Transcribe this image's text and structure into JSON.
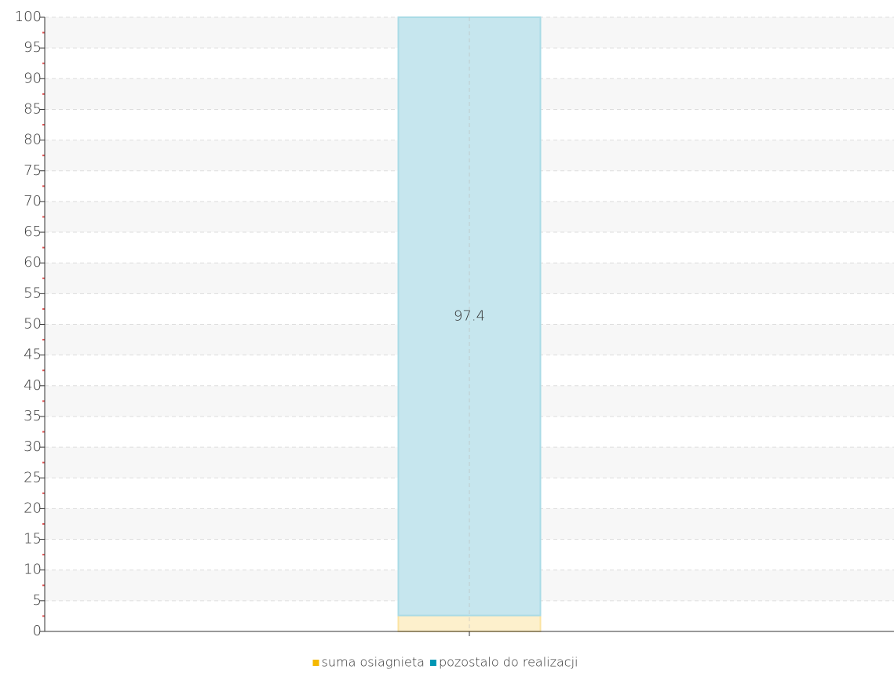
{
  "chart_data": {
    "type": "stacked_bar",
    "categories": [
      null
    ],
    "series": [
      {
        "name": "suma osiagnieta",
        "color": "#f5b800",
        "values": [
          2.6
        ]
      },
      {
        "name": "pozostalo do realizacji",
        "color": "#0096b4",
        "values": [
          97.4
        ],
        "value_labels": [
          "97.4"
        ]
      }
    ],
    "ylim": [
      0,
      100
    ],
    "yticks": [
      0,
      5,
      10,
      15,
      20,
      25,
      30,
      35,
      40,
      45,
      50,
      55,
      60,
      65,
      70,
      75,
      80,
      85,
      90,
      95,
      100
    ],
    "grid": true,
    "legend": "bottom"
  }
}
